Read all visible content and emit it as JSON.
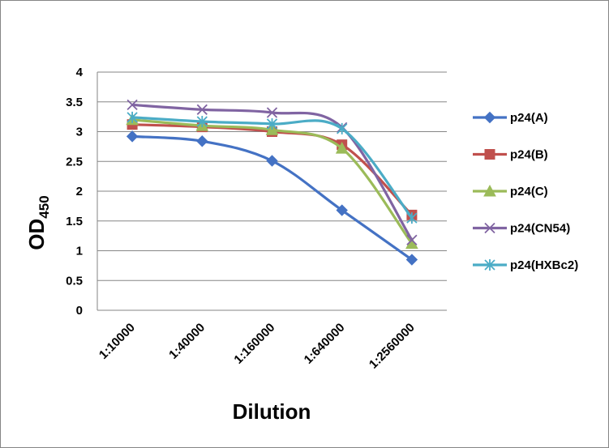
{
  "chart_data": {
    "type": "line",
    "categories": [
      "1:10000",
      "1:40000",
      "1:160000",
      "1:640000",
      "1:2560000"
    ],
    "series": [
      {
        "name": "p24(A)",
        "color": "#4472C4",
        "marker": "diamond",
        "values": [
          2.92,
          2.84,
          2.51,
          1.68,
          0.85
        ]
      },
      {
        "name": "p24(B)",
        "color": "#C0504D",
        "marker": "square",
        "values": [
          3.12,
          3.08,
          3.0,
          2.78,
          1.6
        ]
      },
      {
        "name": "p24(C)",
        "color": "#9BBB59",
        "marker": "triangle",
        "values": [
          3.2,
          3.1,
          3.03,
          2.72,
          1.12
        ]
      },
      {
        "name": "p24(CN54)",
        "color": "#8064A2",
        "marker": "x",
        "values": [
          3.45,
          3.37,
          3.32,
          3.07,
          1.18
        ]
      },
      {
        "name": "p24(HXBc2)",
        "color": "#4BACC6",
        "marker": "star",
        "values": [
          3.24,
          3.17,
          3.13,
          3.05,
          1.55
        ]
      }
    ],
    "y_ticks": [
      "0",
      "0.5",
      "1",
      "1.5",
      "2",
      "2.5",
      "3",
      "3.5",
      "4"
    ],
    "ylim": [
      0,
      4
    ],
    "xlabel": "Dilution",
    "ylabel_main": "OD",
    "ylabel_sub": "450",
    "grid": true,
    "legend": "right"
  }
}
